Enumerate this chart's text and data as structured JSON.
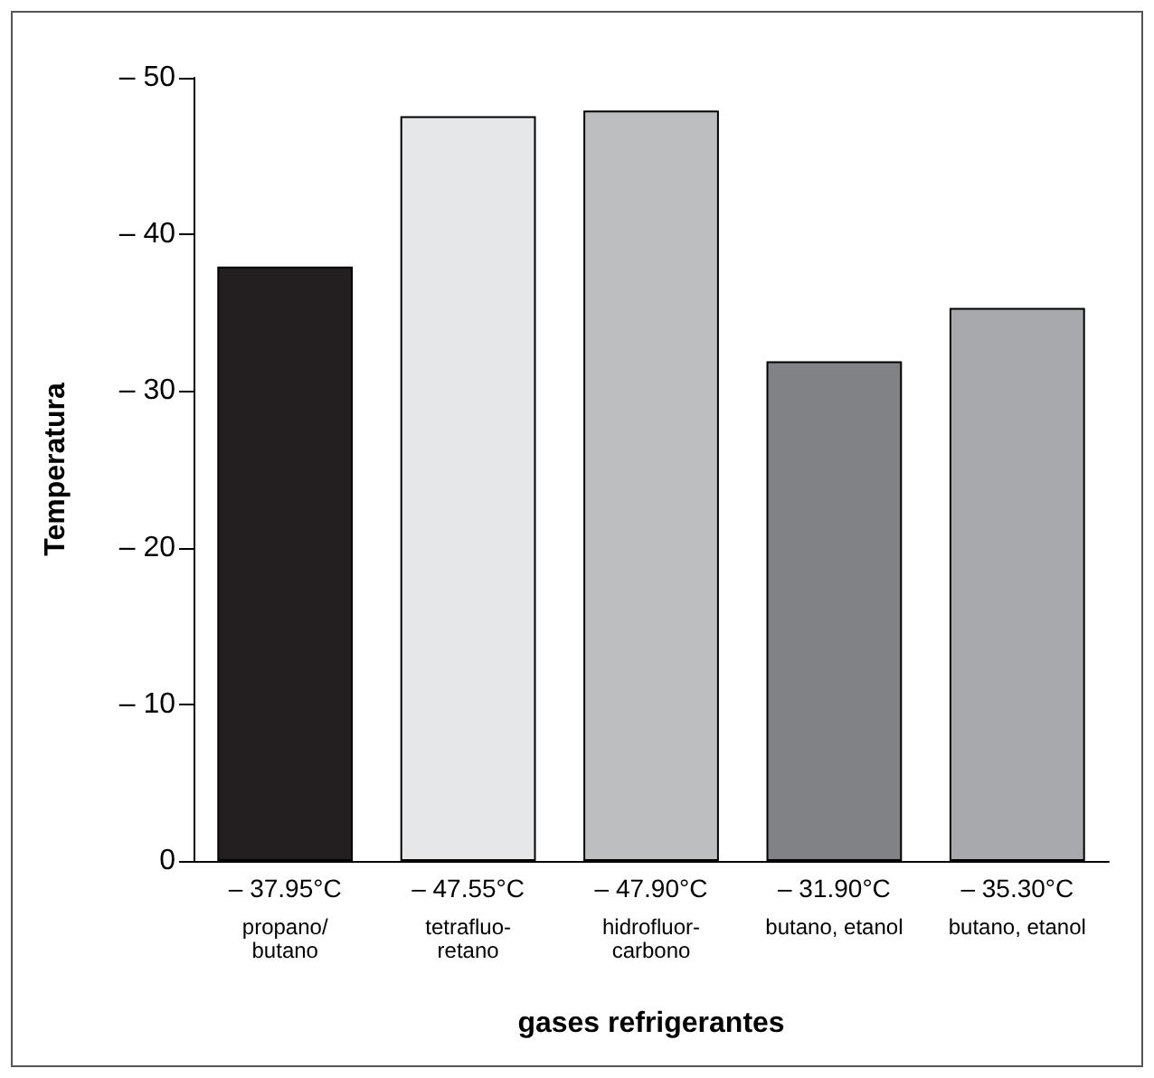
{
  "chart_data": {
    "type": "bar",
    "xlabel": "gases refrigerantes",
    "ylabel": "Temperatura",
    "categories": [
      "propano/\nbutano",
      "tetrafluo-\nretano",
      "hidrofluor-\ncarbono",
      "butano, etanol",
      "butano, etanol"
    ],
    "values": [
      -37.95,
      -47.55,
      -47.9,
      -31.9,
      -35.3
    ],
    "colors": [
      "#231f20",
      "#e6e7e8",
      "#bcbec0",
      "#808285",
      "#a7a9ac"
    ],
    "value_labels": [
      "– 37.95°C",
      "– 47.55°C",
      "– 47.90°C",
      "– 31.90°C",
      "– 35.30°C"
    ],
    "ylim": [
      0,
      -50
    ],
    "yticks": [
      {
        "value": 0,
        "label": "0"
      },
      {
        "value": -10,
        "label": "– 10"
      },
      {
        "value": -20,
        "label": "– 20"
      },
      {
        "value": -30,
        "label": "– 30"
      },
      {
        "value": -40,
        "label": "– 40"
      },
      {
        "value": -50,
        "label": "– 50"
      }
    ],
    "grid": false
  }
}
